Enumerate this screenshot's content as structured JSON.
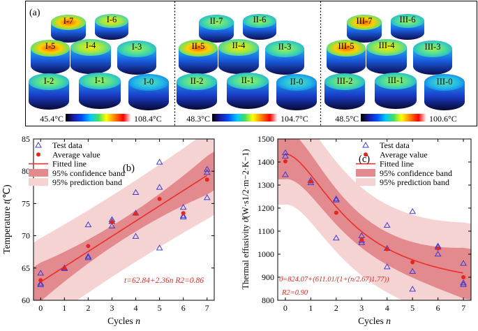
{
  "panel_a": {
    "label": "(a)",
    "groups": [
      {
        "samples": [
          "I-7",
          "I-6",
          "I-5",
          "I-4",
          "I-3",
          "I-2",
          "I-1",
          "I-0"
        ],
        "temp_min": "45.4°C",
        "temp_max": "108.4°C"
      },
      {
        "samples": [
          "II-7",
          "II-6",
          "II-5",
          "II-4",
          "II-3",
          "II-2",
          "II-1",
          "II-0"
        ],
        "temp_min": "48.3°C",
        "temp_max": "104.7°C"
      },
      {
        "samples": [
          "III-7",
          "III-6",
          "III-5",
          "III-4",
          "III-3",
          "III-2",
          "III-1",
          "III-0"
        ],
        "temp_min": "48.5°C",
        "temp_max": "100.6°C"
      }
    ]
  },
  "chart_data": [
    {
      "type": "scatter",
      "panel": "(b)",
      "xlabel_text": "Cycles ",
      "xlabel_var": "n",
      "ylabel_text": "Temperature ",
      "ylabel_var": "t",
      "ylabel_unit": "(℃)",
      "xlim": [
        -0.3,
        7.3
      ],
      "ylim": [
        60,
        85
      ],
      "xticks": [
        "0",
        "1",
        "2",
        "3",
        "4",
        "5",
        "6",
        "7"
      ],
      "yticks": [
        "60",
        "65",
        "70",
        "75",
        "80",
        "85"
      ],
      "legend": [
        "Test data",
        "Average value",
        "Fitted line",
        "95% confidence band",
        "95% prediction band"
      ],
      "equation": "t=62.84+2.36n  R2=0.86",
      "equation_main": "t=62.84+2.36n",
      "equation_r2": "R2=0.86",
      "test_data": [
        {
          "x": 0,
          "values": [
            64.2,
            62.6,
            62.4
          ]
        },
        {
          "x": 1,
          "values": [
            65.0,
            64.9
          ]
        },
        {
          "x": 2,
          "values": [
            71.7,
            66.8,
            66.6
          ]
        },
        {
          "x": 3,
          "values": [
            72.5,
            72.2,
            71.5
          ]
        },
        {
          "x": 4,
          "values": [
            76.7,
            73.5,
            69.9
          ]
        },
        {
          "x": 5,
          "values": [
            81.4,
            77.5,
            68.1
          ]
        },
        {
          "x": 6,
          "values": [
            74.4,
            73.1,
            72.9
          ]
        },
        {
          "x": 7,
          "values": [
            80.3,
            79.8,
            75.9
          ]
        }
      ],
      "average": [
        {
          "x": 0,
          "y": 63.1
        },
        {
          "x": 1,
          "y": 64.95
        },
        {
          "x": 2,
          "y": 68.4
        },
        {
          "x": 3,
          "y": 72.1
        },
        {
          "x": 4,
          "y": 73.4
        },
        {
          "x": 5,
          "y": 75.7
        },
        {
          "x": 6,
          "y": 73.5
        },
        {
          "x": 7,
          "y": 78.7
        }
      ],
      "fit": {
        "intercept": 62.84,
        "slope": 2.36
      },
      "confidence_halfwidth": {
        "at_mean": 1.6,
        "at_ends": 3.0
      },
      "prediction_halfwidth": {
        "at_mean": 6.3,
        "at_ends": 6.8
      }
    },
    {
      "type": "scatter",
      "panel": "(c)",
      "xlabel_text": "Cycles ",
      "xlabel_var": "n",
      "ylabel_text": "Thermal effusivity ",
      "ylabel_var": "ϑ",
      "ylabel_unit": "(W·s1/2·m−2·K−1)",
      "xlim": [
        -0.3,
        7.3
      ],
      "ylim": [
        800,
        1500
      ],
      "xticks": [
        "0",
        "1",
        "2",
        "3",
        "4",
        "5",
        "6",
        "7"
      ],
      "yticks": [
        "800",
        "900",
        "1000",
        "1100",
        "1200",
        "1300",
        "1400",
        "1500"
      ],
      "legend": [
        "Test data",
        "Average value",
        "Fitted line",
        "95% confidence band",
        "95% prediction band"
      ],
      "equation_main": "ϑ=824.07+(611.01/(1+(n/2.67)1.77))",
      "equation_r2": "R2=0.90",
      "test_data": [
        {
          "x": 0,
          "values": [
            1440,
            1425,
            1345
          ]
        },
        {
          "x": 1,
          "values": [
            1320,
            1310
          ]
        },
        {
          "x": 2,
          "values": [
            1240,
            1235,
            1070
          ]
        },
        {
          "x": 3,
          "values": [
            1080,
            1060,
            1050
          ]
        },
        {
          "x": 4,
          "values": [
            1125,
            1025,
            945
          ]
        },
        {
          "x": 5,
          "values": [
            1185,
            925,
            848
          ]
        },
        {
          "x": 6,
          "values": [
            1035,
            1030,
            1000
          ]
        },
        {
          "x": 7,
          "values": [
            960,
            875,
            868
          ]
        }
      ],
      "average": [
        {
          "x": 0,
          "y": 1403
        },
        {
          "x": 1,
          "y": 1315
        },
        {
          "x": 2,
          "y": 1180
        },
        {
          "x": 3,
          "y": 1063
        },
        {
          "x": 4,
          "y": 1022
        },
        {
          "x": 5,
          "y": 965
        },
        {
          "x": 6,
          "y": 1025
        },
        {
          "x": 7,
          "y": 900
        }
      ],
      "fit": {
        "a": 824.07,
        "b": 611.01,
        "c": 2.67,
        "p": 1.77
      },
      "confidence_halfwidth": {
        "at_mean": 70,
        "at_ends": 110
      },
      "prediction_halfwidth": {
        "at_mean": 190,
        "at_ends": 220
      }
    }
  ],
  "colors": {
    "marker_blue": "#3b3bd6",
    "fit_red": "#e8302a",
    "avg_red": "#e3271e",
    "confidence": "#e38a8e",
    "prediction": "#f6d3d3",
    "equation_red": "#e3271e"
  }
}
